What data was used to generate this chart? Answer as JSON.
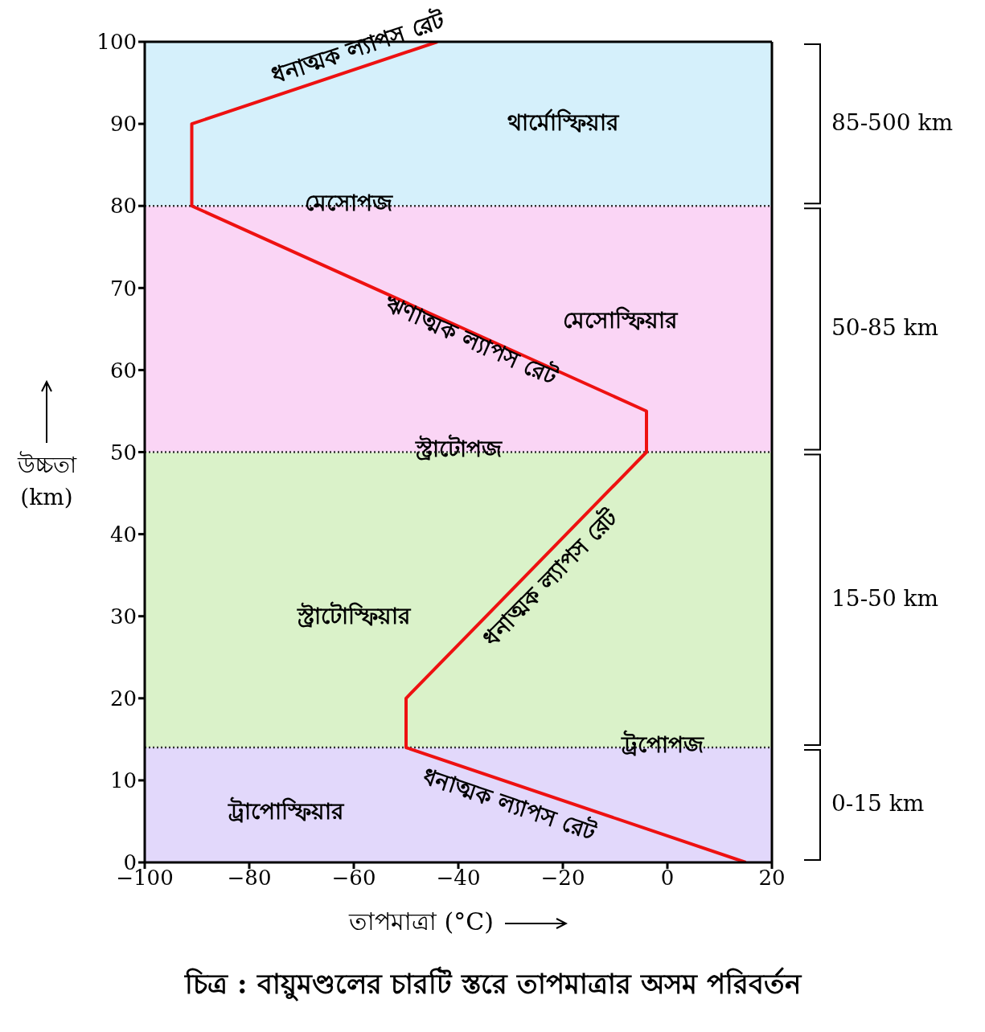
{
  "chart_data": {
    "type": "line",
    "title": "চিত্র : বায়ুমণ্ডলের চারটি স্তরে তাপমাত্রার অসম পরিবর্তন",
    "xlabel": "তাপমাত্রা (°C)",
    "ylabel": "উচ্চতা (km)",
    "x": [
      15,
      -50,
      -50,
      -4,
      -4,
      -91,
      -91,
      -44
    ],
    "series": [
      {
        "color": "#ee1111",
        "values": [
          0,
          14,
          20,
          50,
          55,
          80,
          90,
          100
        ]
      }
    ],
    "xlim": [
      -100,
      20
    ],
    "xticks": [
      {
        "value": -100,
        "label": "−100"
      },
      {
        "value": -80,
        "label": "−80"
      },
      {
        "value": -60,
        "label": "−60"
      },
      {
        "value": -40,
        "label": "−40"
      },
      {
        "value": -20,
        "label": "−20"
      },
      0,
      20
    ],
    "ylim": [
      0,
      100
    ],
    "yticks": [
      0,
      10,
      20,
      30,
      40,
      50,
      60,
      70,
      80,
      90,
      100
    ],
    "grid": true,
    "legend": false,
    "marker": "none",
    "line_style": "solid",
    "bands": [
      {
        "axis": "y",
        "from": 0,
        "to": 14,
        "color": "#e2d8fb",
        "label": "ট্রাপোস্ফিয়ার"
      },
      {
        "axis": "y",
        "from": 14,
        "to": 50,
        "color": "#daf2c9",
        "label": "স্ট্রাটোস্ফিয়ার"
      },
      {
        "axis": "y",
        "from": 50,
        "to": 80,
        "color": "#fad5f5",
        "label": "মেসোস্ফিয়ার"
      },
      {
        "axis": "y",
        "from": 80,
        "to": 100,
        "color": "#d5f0fb",
        "label": "থার্মোস্ফিয়ার"
      }
    ],
    "ref_lines": [
      {
        "axis": "y",
        "value": 14,
        "line_style": "dotted",
        "color": "#333333",
        "label": "ট্রপোপজ"
      },
      {
        "axis": "y",
        "value": 50,
        "line_style": "dotted",
        "color": "#333333",
        "label": "স্ট্রাটোপজ"
      },
      {
        "axis": "y",
        "value": 80,
        "line_style": "dotted",
        "color": "#333333",
        "label": "মেসোপজ"
      }
    ],
    "annotations": [
      "0-15 km",
      "15-50 km",
      "50-85 km",
      "85-500 km",
      {
        "text": "ধনাত্মক ল্যাপস রেট",
        "x": -58,
        "y": 97
      },
      {
        "text": "ঋণাত্মক ল্যাপস রেট",
        "x": -37,
        "y": 64.5
      },
      {
        "text": "ধনাত্মক ল্যাপস রেট",
        "x": -25,
        "y": 36.3
      },
      {
        "text": "ধনাত্মক ল্যাপস রেট",
        "x": -29,
        "y": 9.5
      }
    ]
  }
}
